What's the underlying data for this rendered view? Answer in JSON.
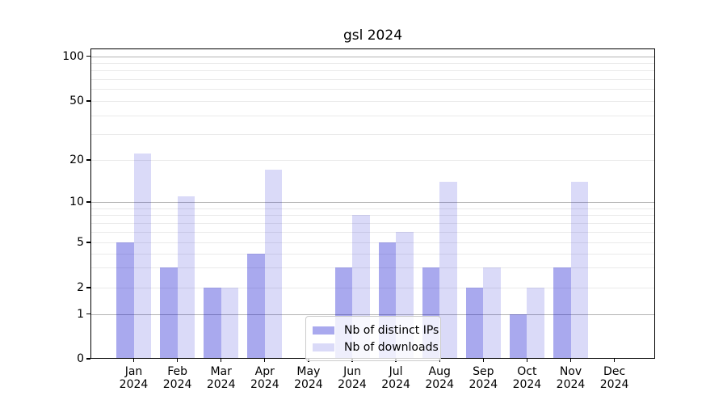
{
  "title": "gsl 2024",
  "chart_data": {
    "type": "bar",
    "title": "gsl 2024",
    "categories": [
      "Jan 2024",
      "Feb 2024",
      "Mar 2024",
      "Apr 2024",
      "May 2024",
      "Jun 2024",
      "Jul 2024",
      "Aug 2024",
      "Sep 2024",
      "Oct 2024",
      "Nov 2024",
      "Dec 2024"
    ],
    "series": [
      {
        "name": "Nb of distinct IPs",
        "color_hex_on_white": "#a9a9ee",
        "fill": "rgba(10,10,205,0.35)",
        "values": [
          5,
          3,
          2,
          4,
          0,
          3,
          5,
          3,
          2,
          1,
          3,
          0
        ]
      },
      {
        "name": "Nb of downloads",
        "color_hex_on_white": "#d9d9f7",
        "fill": "rgba(10,10,205,0.15)",
        "values": [
          22,
          11,
          2,
          17,
          0,
          8,
          6,
          14,
          3,
          2,
          14,
          0
        ]
      }
    ],
    "xlabel": "",
    "ylabel": "",
    "yscale": "log-like with zero baseline",
    "yticks": [
      0,
      1,
      2,
      5,
      10,
      20,
      50,
      100
    ],
    "ytick_labels": [
      "0",
      "1",
      "2",
      "5",
      "10",
      "20",
      "50",
      "100"
    ],
    "major_gridlines": [
      1,
      10,
      100
    ],
    "minor_gridlines": [
      2,
      3,
      4,
      5,
      6,
      7,
      8,
      9,
      20,
      30,
      40,
      50,
      60,
      70,
      80,
      90
    ],
    "ylim": [
      0,
      110
    ],
    "grid": true,
    "legend": {
      "items": [
        "Nb of distinct IPs",
        "Nb of downloads"
      ],
      "position": "inside-bottom-center"
    }
  },
  "colors": {
    "axis": "#000000",
    "major_grid": "#b3b3b3",
    "minor_grid": "#eaeaea",
    "background": "#ffffff",
    "legend_border": "#cccccc"
  }
}
